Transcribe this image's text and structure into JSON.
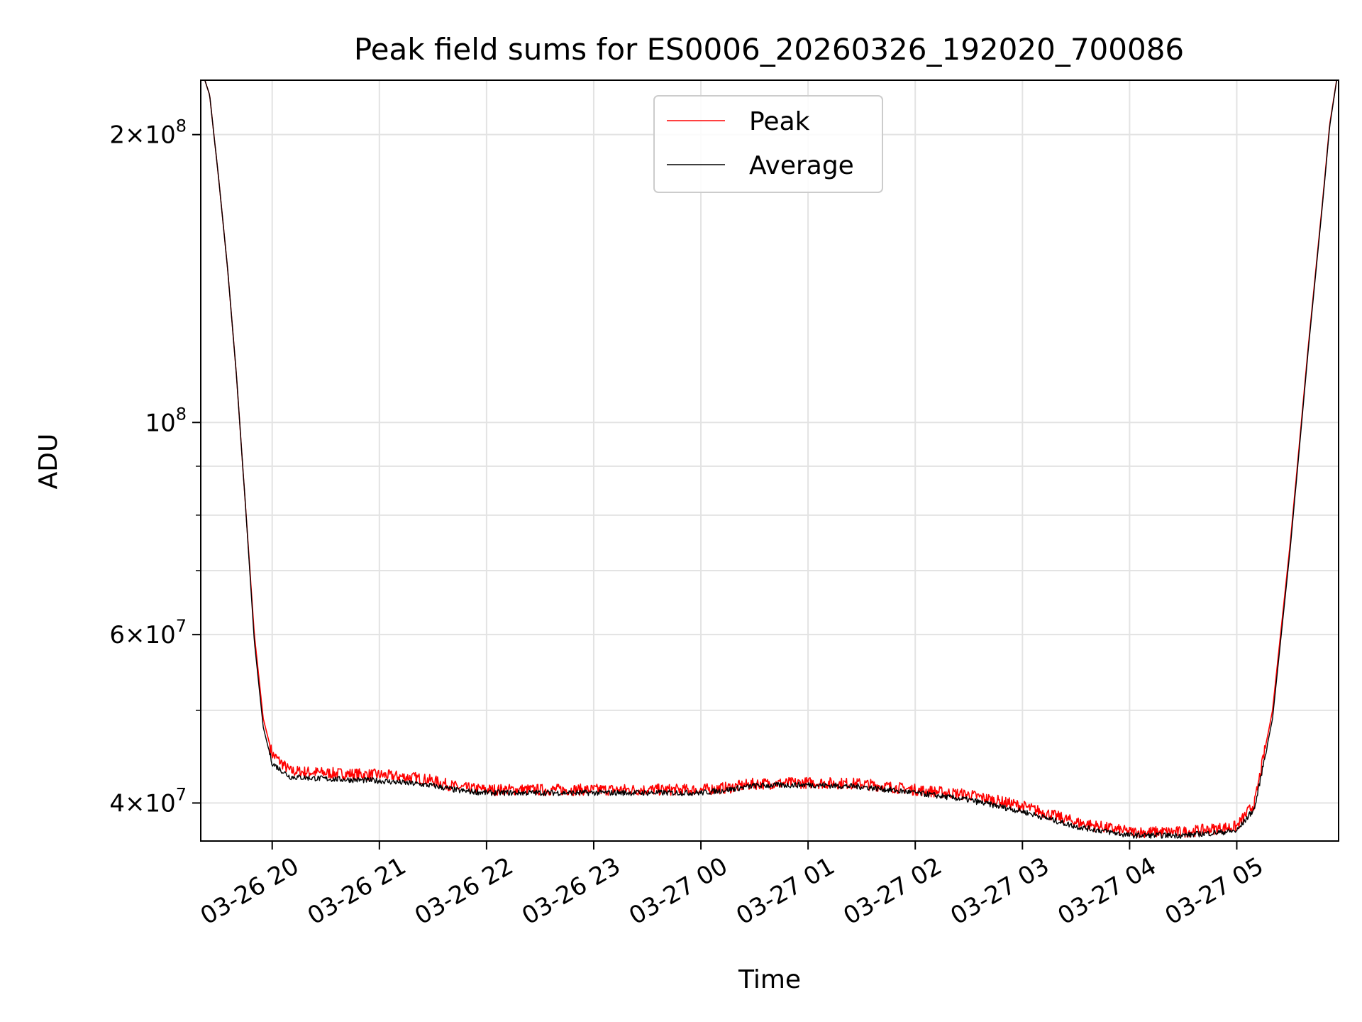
{
  "chart_data": {
    "type": "line",
    "title": "Peak field sums for ES0006_20260326_192020_700086",
    "xlabel": "Time",
    "ylabel": "ADU",
    "x_ticks": [
      "03-26 20",
      "03-26 21",
      "03-26 22",
      "03-26 23",
      "03-27 00",
      "03-27 01",
      "03-27 02",
      "03-27 03",
      "03-27 04",
      "03-27 05"
    ],
    "x_range": [
      "2026-03-26 19:20",
      "2026-03-27 05:57"
    ],
    "y_scale": "log",
    "ylim": [
      36500000,
      228000000
    ],
    "y_ticks": [
      {
        "value": 40000000,
        "base": "4",
        "exp": "7"
      },
      {
        "value": 60000000,
        "base": "6",
        "exp": "7"
      },
      {
        "value": 100000000,
        "base": "",
        "exp": "8"
      },
      {
        "value": 200000000,
        "base": "2",
        "exp": "8"
      }
    ],
    "y_minor_ticks": [
      50000000,
      70000000,
      80000000,
      90000000
    ],
    "grid": true,
    "legend_position": "upper-center",
    "series": [
      {
        "name": "Peak",
        "color": "#ff0000",
        "points": [
          [
            "2026-03-26 19:20",
            235000000
          ],
          [
            "2026-03-26 19:25",
            220000000
          ],
          [
            "2026-03-26 19:30",
            180000000
          ],
          [
            "2026-03-26 19:35",
            145000000
          ],
          [
            "2026-03-26 19:40",
            112000000
          ],
          [
            "2026-03-26 19:45",
            82000000
          ],
          [
            "2026-03-26 19:50",
            60000000
          ],
          [
            "2026-03-26 19:55",
            49000000
          ],
          [
            "2026-03-26 20:00",
            45000000
          ],
          [
            "2026-03-26 20:10",
            43200000
          ],
          [
            "2026-03-26 20:30",
            43000000
          ],
          [
            "2026-03-26 21:00",
            42800000
          ],
          [
            "2026-03-26 21:20",
            42500000
          ],
          [
            "2026-03-26 21:30",
            42200000
          ],
          [
            "2026-03-26 21:45",
            41500000
          ],
          [
            "2026-03-26 22:00",
            41300000
          ],
          [
            "2026-03-26 23:00",
            41300000
          ],
          [
            "2026-03-27 00:00",
            41300000
          ],
          [
            "2026-03-27 00:15",
            41500000
          ],
          [
            "2026-03-27 00:30",
            41900000
          ],
          [
            "2026-03-27 01:00",
            42000000
          ],
          [
            "2026-03-27 01:30",
            41900000
          ],
          [
            "2026-03-27 02:00",
            41300000
          ],
          [
            "2026-03-27 02:30",
            40800000
          ],
          [
            "2026-03-27 03:00",
            39700000
          ],
          [
            "2026-03-27 03:30",
            38200000
          ],
          [
            "2026-03-27 04:00",
            37300000
          ],
          [
            "2026-03-27 04:30",
            37300000
          ],
          [
            "2026-03-27 05:00",
            37800000
          ],
          [
            "2026-03-27 05:10",
            40000000
          ],
          [
            "2026-03-27 05:20",
            50000000
          ],
          [
            "2026-03-27 05:30",
            75000000
          ],
          [
            "2026-03-27 05:40",
            120000000
          ],
          [
            "2026-03-27 05:48",
            170000000
          ],
          [
            "2026-03-27 05:52",
            205000000
          ],
          [
            "2026-03-27 05:57",
            235000000
          ]
        ]
      },
      {
        "name": "Average",
        "color": "#000000",
        "points": [
          [
            "2026-03-26 19:20",
            235000000
          ],
          [
            "2026-03-26 19:25",
            220000000
          ],
          [
            "2026-03-26 19:30",
            180000000
          ],
          [
            "2026-03-26 19:35",
            145000000
          ],
          [
            "2026-03-26 19:40",
            112000000
          ],
          [
            "2026-03-26 19:45",
            82000000
          ],
          [
            "2026-03-26 19:50",
            59000000
          ],
          [
            "2026-03-26 19:55",
            48000000
          ],
          [
            "2026-03-26 20:00",
            44000000
          ],
          [
            "2026-03-26 20:10",
            42600000
          ],
          [
            "2026-03-26 20:30",
            42400000
          ],
          [
            "2026-03-26 21:00",
            42200000
          ],
          [
            "2026-03-26 21:20",
            41900000
          ],
          [
            "2026-03-26 21:30",
            41700000
          ],
          [
            "2026-03-26 21:45",
            41200000
          ],
          [
            "2026-03-26 22:00",
            41000000
          ],
          [
            "2026-03-26 23:00",
            41000000
          ],
          [
            "2026-03-27 00:00",
            41000000
          ],
          [
            "2026-03-27 00:15",
            41300000
          ],
          [
            "2026-03-27 00:30",
            41700000
          ],
          [
            "2026-03-27 01:00",
            41800000
          ],
          [
            "2026-03-27 01:30",
            41600000
          ],
          [
            "2026-03-27 02:00",
            41000000
          ],
          [
            "2026-03-27 02:30",
            40300000
          ],
          [
            "2026-03-27 03:00",
            39200000
          ],
          [
            "2026-03-27 03:30",
            37800000
          ],
          [
            "2026-03-27 04:00",
            37000000
          ],
          [
            "2026-03-27 04:30",
            37000000
          ],
          [
            "2026-03-27 05:00",
            37400000
          ],
          [
            "2026-03-27 05:10",
            39500000
          ],
          [
            "2026-03-27 05:20",
            49000000
          ],
          [
            "2026-03-27 05:30",
            74000000
          ],
          [
            "2026-03-27 05:40",
            119000000
          ],
          [
            "2026-03-27 05:48",
            169000000
          ],
          [
            "2026-03-27 05:52",
            204000000
          ],
          [
            "2026-03-27 05:57",
            235000000
          ]
        ]
      }
    ]
  }
}
